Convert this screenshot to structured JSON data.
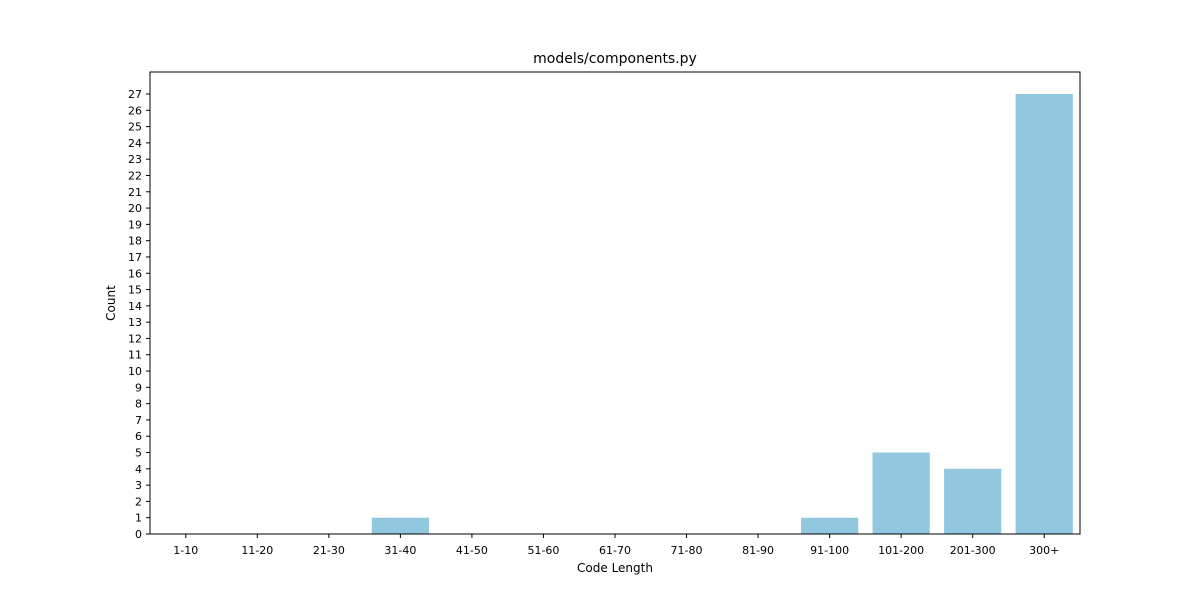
{
  "chart_data": {
    "type": "bar",
    "title": "models/components.py",
    "xlabel": "Code Length",
    "ylabel": "Count",
    "categories": [
      "1-10",
      "11-20",
      "21-30",
      "31-40",
      "41-50",
      "51-60",
      "61-70",
      "71-80",
      "81-90",
      "91-100",
      "101-200",
      "201-300",
      "300+"
    ],
    "values": [
      0,
      0,
      0,
      1,
      0,
      0,
      0,
      0,
      0,
      1,
      5,
      4,
      27
    ],
    "ylim": [
      0,
      28.35
    ],
    "yticks": [
      0,
      1,
      2,
      3,
      4,
      5,
      6,
      7,
      8,
      9,
      10,
      11,
      12,
      13,
      14,
      15,
      16,
      17,
      18,
      19,
      20,
      21,
      22,
      23,
      24,
      25,
      26,
      27
    ],
    "grid": false,
    "bar_color": "#92c8df"
  }
}
